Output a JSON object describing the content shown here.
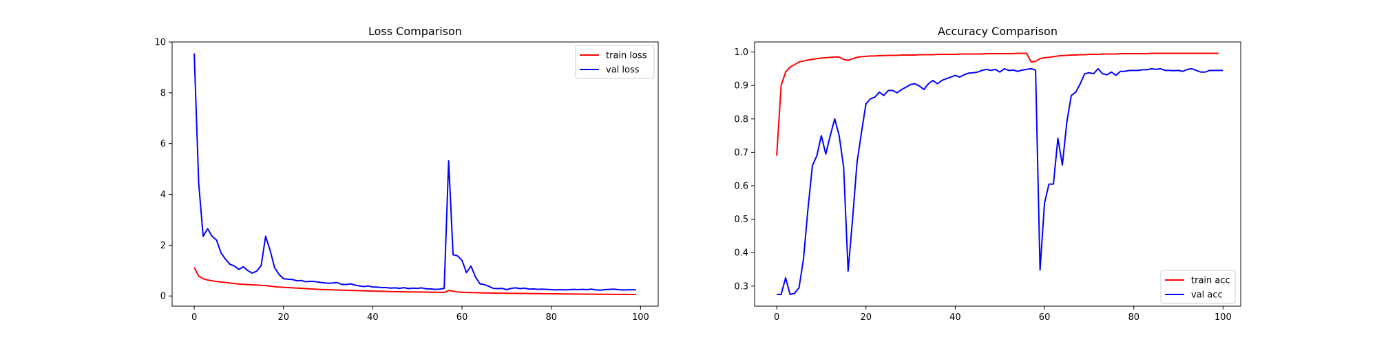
{
  "chart_data": [
    {
      "type": "line",
      "title": "Loss Comparison",
      "xlabel": "",
      "ylabel": "",
      "xlim": [
        -4.95,
        103.95
      ],
      "ylim": [
        -0.4,
        10
      ],
      "xticks": [
        0,
        20,
        40,
        60,
        80,
        100
      ],
      "yticks": [
        0,
        2,
        4,
        6,
        8,
        10
      ],
      "grid": false,
      "legend": "top-right",
      "series": [
        {
          "name": "train loss",
          "color": "#ff0000",
          "values": [
            1.12,
            0.78,
            0.68,
            0.63,
            0.6,
            0.57,
            0.55,
            0.53,
            0.51,
            0.49,
            0.47,
            0.46,
            0.45,
            0.44,
            0.43,
            0.42,
            0.41,
            0.39,
            0.37,
            0.35,
            0.34,
            0.33,
            0.32,
            0.31,
            0.3,
            0.29,
            0.28,
            0.27,
            0.26,
            0.255,
            0.25,
            0.24,
            0.235,
            0.23,
            0.225,
            0.22,
            0.215,
            0.21,
            0.205,
            0.2,
            0.195,
            0.19,
            0.185,
            0.18,
            0.175,
            0.17,
            0.168,
            0.165,
            0.162,
            0.16,
            0.157,
            0.155,
            0.152,
            0.15,
            0.148,
            0.145,
            0.143,
            0.22,
            0.19,
            0.16,
            0.15,
            0.14,
            0.135,
            0.13,
            0.125,
            0.12,
            0.118,
            0.115,
            0.112,
            0.11,
            0.108,
            0.106,
            0.104,
            0.102,
            0.1,
            0.098,
            0.096,
            0.094,
            0.092,
            0.09,
            0.088,
            0.086,
            0.084,
            0.082,
            0.08,
            0.078,
            0.076,
            0.074,
            0.072,
            0.07,
            0.069,
            0.068,
            0.067,
            0.066,
            0.065,
            0.064,
            0.063,
            0.062,
            0.061,
            0.06
          ]
        },
        {
          "name": "val loss",
          "color": "#0000ff",
          "values": [
            9.55,
            4.45,
            2.35,
            2.65,
            2.35,
            2.2,
            1.7,
            1.45,
            1.25,
            1.18,
            1.05,
            1.15,
            1.0,
            0.9,
            0.98,
            1.2,
            2.35,
            1.8,
            1.12,
            0.85,
            0.68,
            0.66,
            0.65,
            0.6,
            0.61,
            0.56,
            0.58,
            0.57,
            0.54,
            0.52,
            0.5,
            0.51,
            0.53,
            0.46,
            0.45,
            0.48,
            0.43,
            0.4,
            0.37,
            0.4,
            0.35,
            0.35,
            0.33,
            0.33,
            0.31,
            0.32,
            0.3,
            0.33,
            0.29,
            0.31,
            0.3,
            0.32,
            0.28,
            0.28,
            0.26,
            0.27,
            0.3,
            5.32,
            1.62,
            1.58,
            1.4,
            0.92,
            1.18,
            0.75,
            0.48,
            0.45,
            0.38,
            0.3,
            0.29,
            0.3,
            0.25,
            0.3,
            0.32,
            0.29,
            0.31,
            0.27,
            0.28,
            0.26,
            0.27,
            0.26,
            0.25,
            0.24,
            0.25,
            0.24,
            0.25,
            0.26,
            0.25,
            0.26,
            0.25,
            0.27,
            0.24,
            0.23,
            0.25,
            0.26,
            0.27,
            0.25,
            0.24,
            0.24,
            0.25,
            0.24
          ]
        }
      ]
    },
    {
      "type": "line",
      "title": "Accuracy Comparison",
      "xlabel": "",
      "ylabel": "",
      "xlim": [
        -4.95,
        103.95
      ],
      "ylim": [
        0.24,
        1.03
      ],
      "xticks": [
        0,
        20,
        40,
        60,
        80,
        100
      ],
      "yticks": [
        0.3,
        0.4,
        0.5,
        0.6,
        0.7,
        0.8,
        0.9,
        1.0
      ],
      "grid": false,
      "legend": "bottom-right",
      "series": [
        {
          "name": "train acc",
          "color": "#ff0000",
          "values": [
            0.69,
            0.9,
            0.94,
            0.955,
            0.962,
            0.97,
            0.973,
            0.976,
            0.978,
            0.98,
            0.982,
            0.983,
            0.984,
            0.985,
            0.985,
            0.978,
            0.975,
            0.98,
            0.984,
            0.986,
            0.987,
            0.988,
            0.988,
            0.989,
            0.989,
            0.99,
            0.99,
            0.99,
            0.991,
            0.991,
            0.991,
            0.991,
            0.992,
            0.992,
            0.992,
            0.992,
            0.993,
            0.993,
            0.993,
            0.993,
            0.993,
            0.994,
            0.994,
            0.994,
            0.994,
            0.994,
            0.994,
            0.995,
            0.995,
            0.995,
            0.995,
            0.995,
            0.995,
            0.995,
            0.996,
            0.996,
            0.996,
            0.97,
            0.972,
            0.98,
            0.983,
            0.984,
            0.986,
            0.988,
            0.989,
            0.99,
            0.991,
            0.991,
            0.992,
            0.992,
            0.993,
            0.993,
            0.993,
            0.994,
            0.994,
            0.994,
            0.994,
            0.995,
            0.995,
            0.995,
            0.995,
            0.995,
            0.995,
            0.995,
            0.996,
            0.996,
            0.996,
            0.996,
            0.996,
            0.996,
            0.996,
            0.996,
            0.996,
            0.996,
            0.996,
            0.996,
            0.996,
            0.996,
            0.996,
            0.996
          ]
        },
        {
          "name": "val acc",
          "color": "#0000ff",
          "values": [
            0.275,
            0.275,
            0.325,
            0.275,
            0.278,
            0.295,
            0.38,
            0.53,
            0.66,
            0.69,
            0.75,
            0.695,
            0.75,
            0.8,
            0.75,
            0.655,
            0.345,
            0.5,
            0.67,
            0.76,
            0.845,
            0.86,
            0.865,
            0.88,
            0.87,
            0.885,
            0.885,
            0.878,
            0.888,
            0.895,
            0.903,
            0.905,
            0.898,
            0.888,
            0.905,
            0.915,
            0.905,
            0.915,
            0.92,
            0.925,
            0.93,
            0.925,
            0.932,
            0.937,
            0.938,
            0.94,
            0.945,
            0.948,
            0.945,
            0.948,
            0.94,
            0.95,
            0.945,
            0.946,
            0.942,
            0.946,
            0.948,
            0.95,
            0.946,
            0.348,
            0.548,
            0.605,
            0.605,
            0.742,
            0.662,
            0.79,
            0.87,
            0.88,
            0.905,
            0.935,
            0.938,
            0.935,
            0.95,
            0.935,
            0.932,
            0.94,
            0.93,
            0.942,
            0.942,
            0.945,
            0.945,
            0.945,
            0.947,
            0.947,
            0.95,
            0.948,
            0.95,
            0.945,
            0.945,
            0.944,
            0.945,
            0.942,
            0.948,
            0.95,
            0.945,
            0.94,
            0.94,
            0.945,
            0.945,
            0.945,
            0.945
          ]
        }
      ]
    }
  ]
}
